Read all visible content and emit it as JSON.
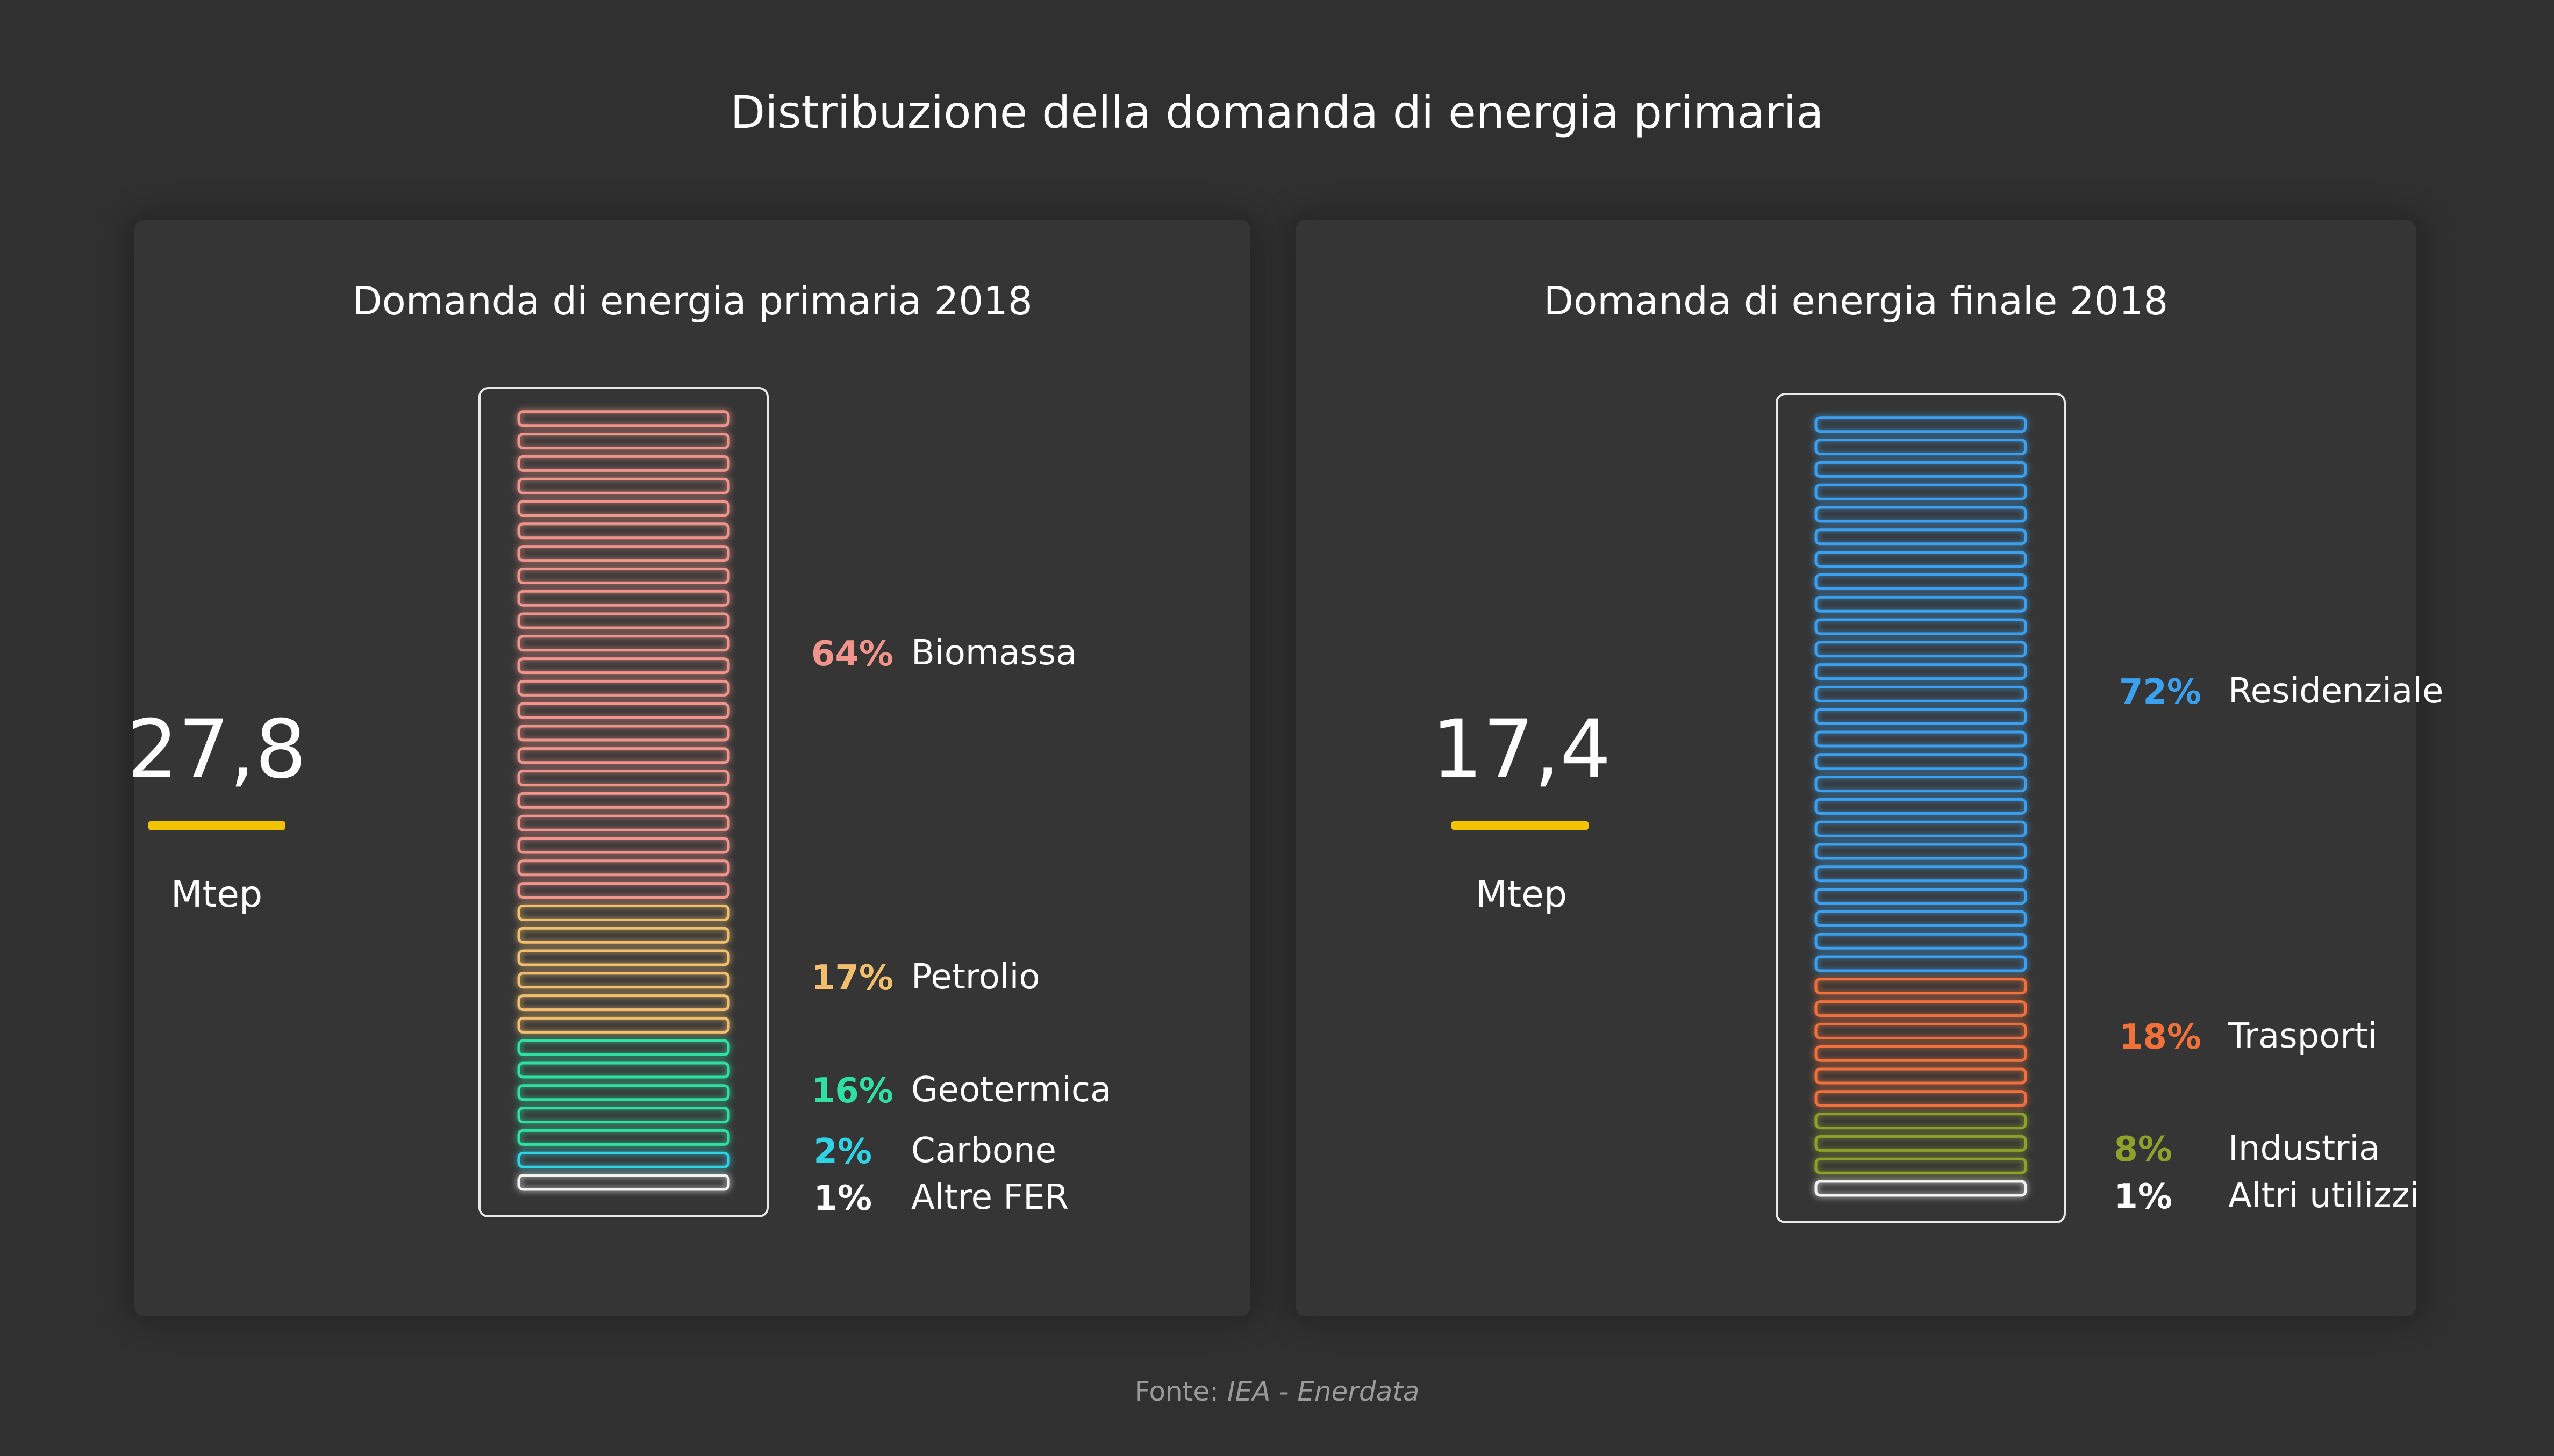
{
  "title": "Distribuzione della domanda di energia primaria",
  "footer": {
    "prefix": "Fonte:",
    "source1": "IEA",
    "separator": " - ",
    "source2": "Enerdata"
  },
  "accent_color": "#f2c300",
  "chart_data": [
    {
      "type": "bar",
      "title": "Domanda di energia primaria 2018",
      "total": "27,8",
      "unit": "Mtep",
      "segments": [
        {
          "label": "Biomassa",
          "percent_label": "64%",
          "value": 64,
          "color": "#f0948c"
        },
        {
          "label": "Petrolio",
          "percent_label": "17%",
          "value": 17,
          "color": "#f2bf6e"
        },
        {
          "label": "Geotermica",
          "percent_label": "16%",
          "value": 16,
          "color": "#2fe0a2"
        },
        {
          "label": "Carbone",
          "percent_label": "2%",
          "value": 2,
          "color": "#2ed3e6"
        },
        {
          "label": "Altre FER",
          "percent_label": "1%",
          "value": 1,
          "color": "#f2f2f2"
        }
      ],
      "stripe_counts": [
        22,
        6,
        5,
        1,
        1
      ]
    },
    {
      "type": "bar",
      "title": "Domanda di energia finale 2018",
      "total": "17,4",
      "unit": "Mtep",
      "segments": [
        {
          "label": "Residenziale",
          "percent_label": "72%",
          "value": 72,
          "color": "#3aa0f0"
        },
        {
          "label": "Trasporti",
          "percent_label": "18%",
          "value": 18,
          "color": "#f2703a"
        },
        {
          "label": "Industria",
          "percent_label": "8%",
          "value": 8,
          "color": "#8fa12a"
        },
        {
          "label": "Altri utilizzi",
          "percent_label": "1%",
          "value": 1,
          "color": "#f2f2f2"
        }
      ],
      "stripe_counts": [
        25,
        6,
        3,
        1
      ]
    }
  ]
}
